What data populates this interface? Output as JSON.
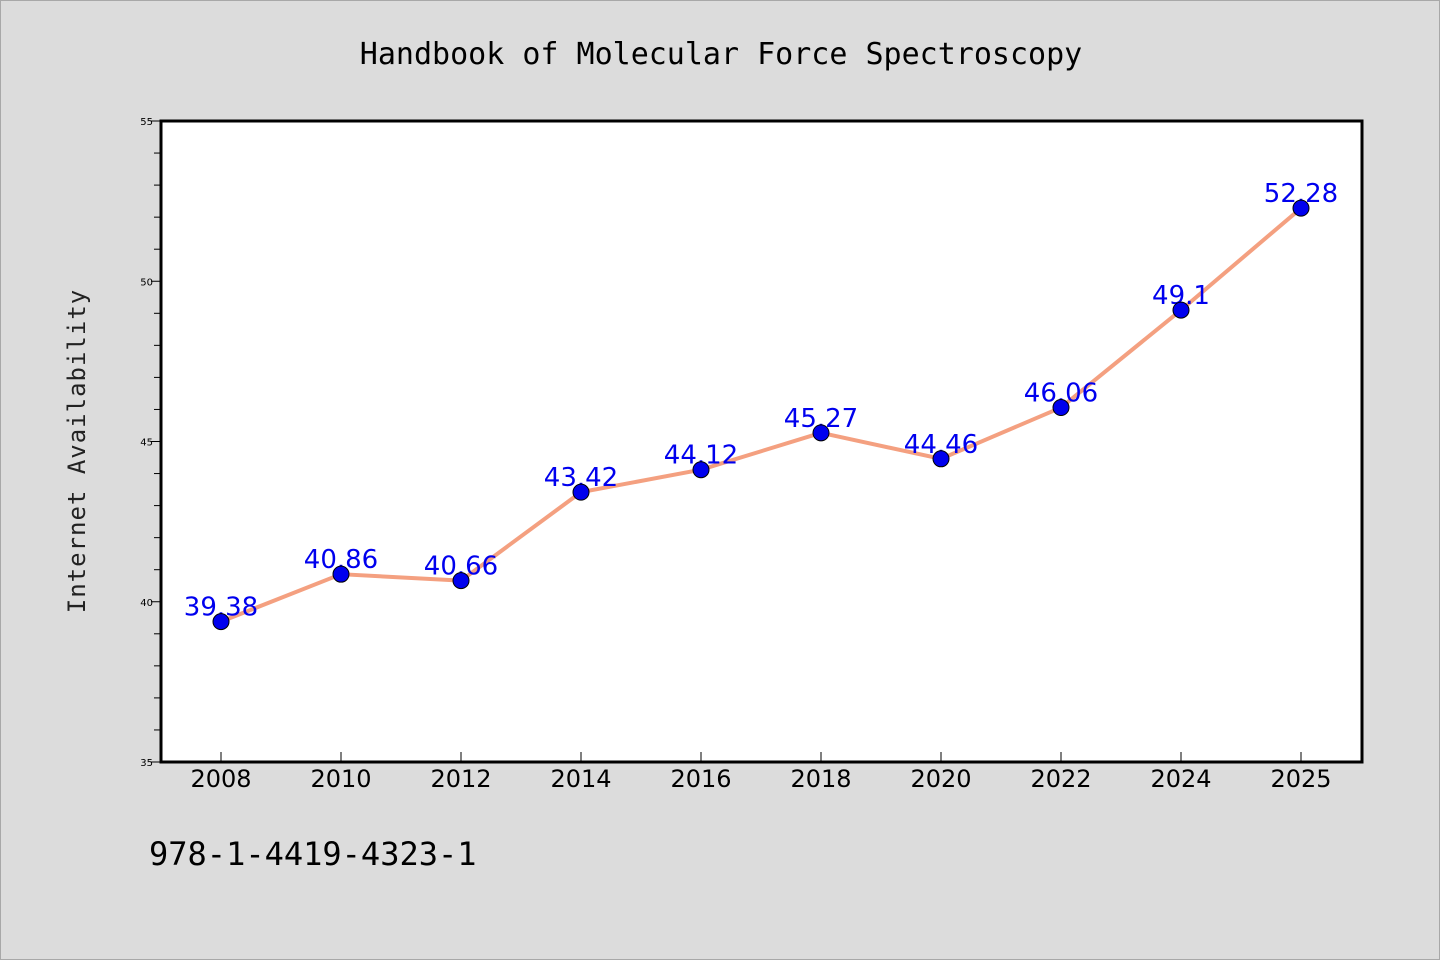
{
  "chart_data": {
    "type": "line",
    "title": "Handbook of Molecular Force Spectroscopy",
    "xlabel": "",
    "ylabel": "Internet Availability",
    "categories": [
      "2008",
      "2010",
      "2012",
      "2014",
      "2016",
      "2018",
      "2020",
      "2022",
      "2024",
      "2025"
    ],
    "series": [
      {
        "values": [
          39.38,
          40.86,
          40.66,
          43.42,
          44.12,
          45.27,
          44.46,
          46.06,
          49.1,
          52.28
        ],
        "labels": [
          "39.38",
          "40.86",
          "40.66",
          "43.42",
          "44.12",
          "45.27",
          "44.46",
          "46.06",
          "49.1",
          "52.28"
        ]
      }
    ],
    "ylim": [
      35,
      55
    ],
    "yticks": [
      "35",
      "40",
      "45",
      "50",
      "55"
    ],
    "grid": false,
    "colors": {
      "line": "#f4a080",
      "marker": "#0000ee",
      "label": "#0000ee",
      "plot_background": "#ffffff",
      "page_background": "#dcdcdc"
    }
  },
  "footer": {
    "isbn": "978-1-4419-4323-1"
  }
}
